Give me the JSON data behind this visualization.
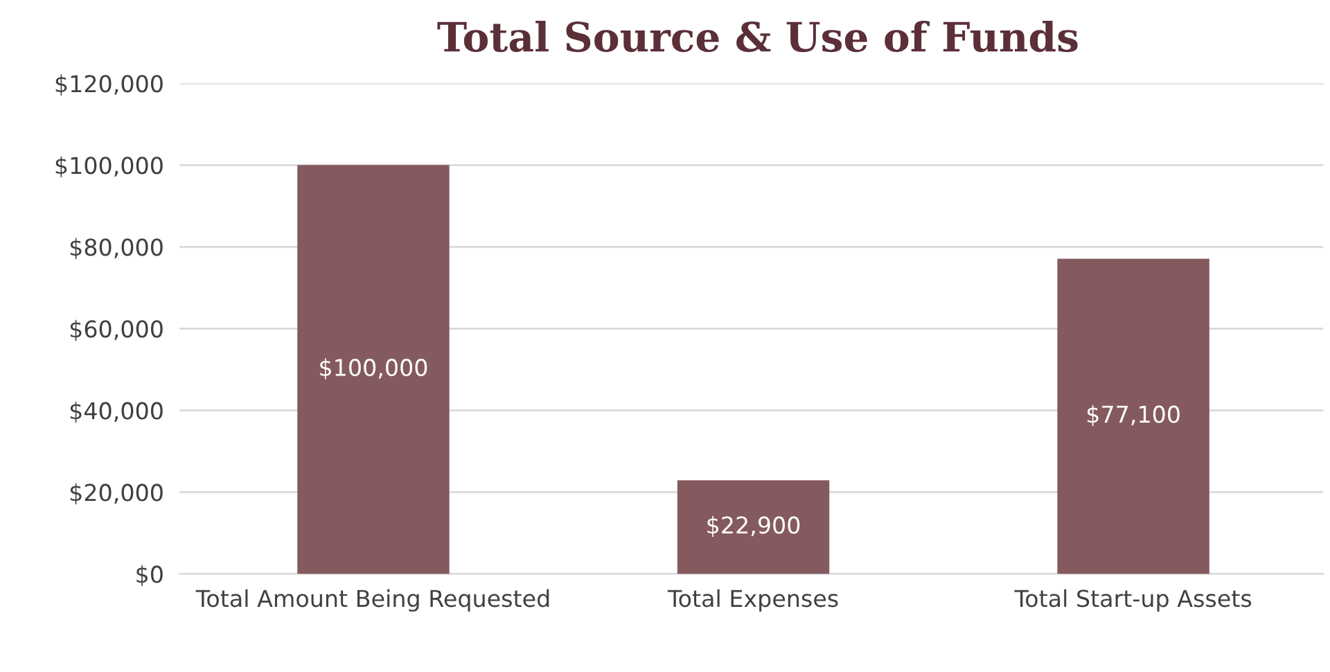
{
  "chart_data": {
    "type": "bar",
    "title": "Total Source & Use of Funds",
    "categories": [
      "Total Amount Being Requested",
      "Total Expenses",
      "Total Start-up Assets"
    ],
    "values": [
      100000,
      22900,
      77100
    ],
    "color": "#845a5e",
    "value_labels": [
      "$100,000",
      "$22,900",
      "$77,100"
    ],
    "ylim": [
      0,
      120000
    ],
    "yticks": [
      {
        "value": 0,
        "label": "$0"
      },
      {
        "value": 20000,
        "label": "$20,000"
      },
      {
        "value": 40000,
        "label": "$40,000"
      },
      {
        "value": 60000,
        "label": "$60,000"
      },
      {
        "value": 80000,
        "label": "$80,000"
      },
      {
        "value": 100000,
        "label": "$100,000"
      },
      {
        "value": 120000,
        "label": "$120,000"
      }
    ],
    "grid": "y"
  }
}
